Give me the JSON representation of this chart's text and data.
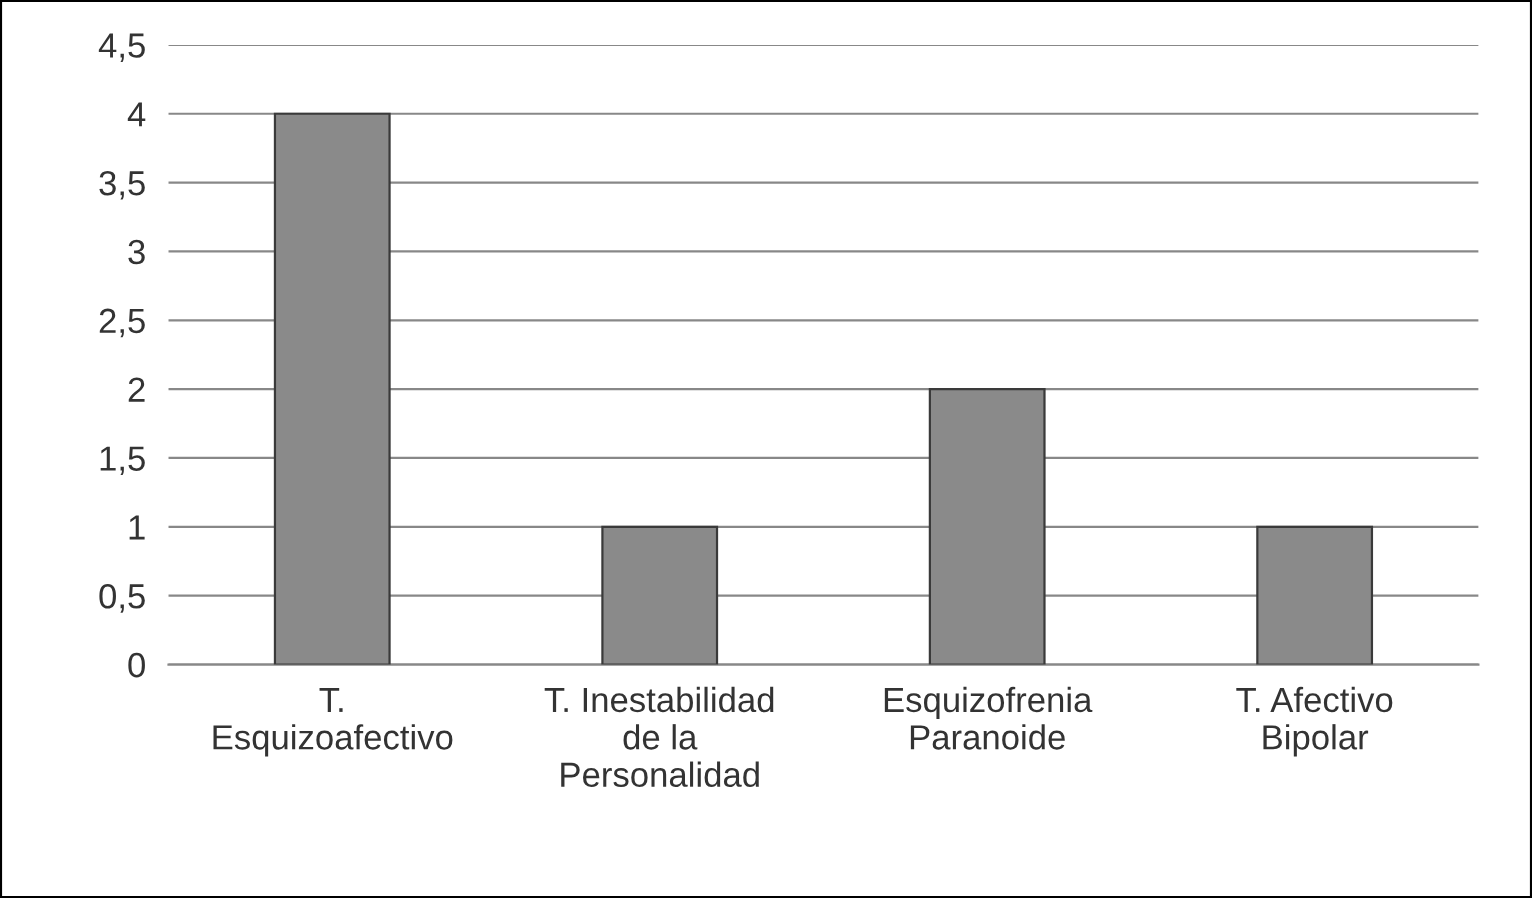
{
  "chart_data": {
    "type": "bar",
    "categories": [
      "T.\nEsquizoafectivo",
      "T. Inestabilidad\nde la\nPersonalidad",
      "Esquizofrenia\nParanoide",
      "T. Afectivo\nBipolar"
    ],
    "values": [
      4,
      1,
      2,
      1
    ],
    "color": "#8a8a8a",
    "ylim": [
      0,
      4.5
    ],
    "yticks": [
      0,
      {
        "value": 0.5,
        "label": "0,5"
      },
      1,
      {
        "value": 1.5,
        "label": "1,5"
      },
      2,
      {
        "value": 2.5,
        "label": "2,5"
      },
      3,
      {
        "value": 3.5,
        "label": "3,5"
      },
      4,
      {
        "value": 4.5,
        "label": "4,5"
      }
    ],
    "grid": "y"
  }
}
